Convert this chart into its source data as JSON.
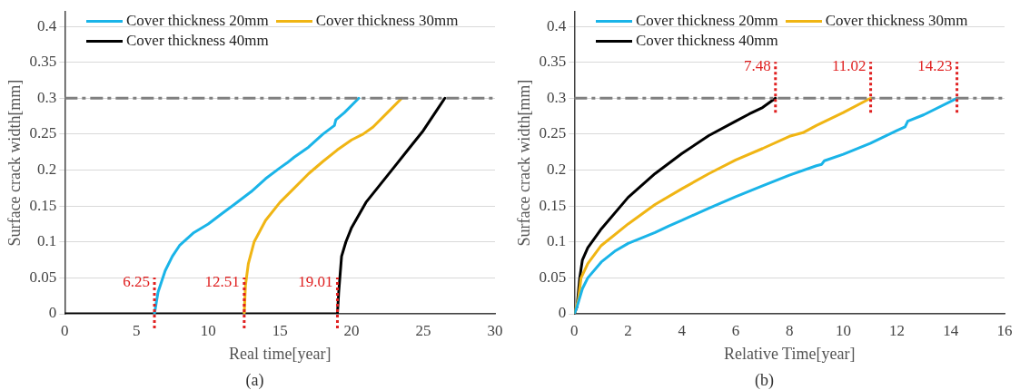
{
  "chart_data": [
    {
      "type": "line",
      "xlabel": "Real time[year]",
      "ylabel": "Surface crack width[mm]",
      "annotations": [
        "(a)"
      ],
      "xlim": [
        0,
        30
      ],
      "xticks": [
        0,
        5,
        10,
        15,
        20,
        25,
        30
      ],
      "ylim": [
        0,
        0.42
      ],
      "yticks": [
        0,
        0.05,
        0.1,
        0.15,
        0.2,
        0.25,
        0.3,
        0.35,
        0.4
      ],
      "grid": "y",
      "legend": "top",
      "line_style": "solid",
      "marker": "none",
      "series": [
        {
          "name": "Cover thickness 20mm",
          "color": "#1ab4e8",
          "x": [
            6.25,
            6.5,
            7,
            7.5,
            8,
            9,
            10,
            11,
            12,
            13,
            14,
            15,
            15.5,
            16,
            17,
            18,
            18.8,
            18.9,
            19.5,
            20.5
          ],
          "values": [
            0,
            0.03,
            0.06,
            0.08,
            0.095,
            0.113,
            0.125,
            0.14,
            0.155,
            0.17,
            0.188,
            0.203,
            0.21,
            0.218,
            0.232,
            0.25,
            0.262,
            0.27,
            0.28,
            0.3
          ]
        },
        {
          "name": "Cover thickness 30mm",
          "color": "#f0b514",
          "x": [
            12.51,
            12.6,
            12.8,
            13.2,
            14,
            15,
            16,
            17,
            18,
            19,
            20,
            20.8,
            21.5,
            22.5,
            23.5
          ],
          "values": [
            0,
            0.04,
            0.07,
            0.1,
            0.13,
            0.155,
            0.175,
            0.195,
            0.212,
            0.228,
            0.242,
            0.25,
            0.26,
            0.28,
            0.3
          ]
        },
        {
          "name": "Cover thickness 40mm",
          "color": "#000000",
          "x": [
            0,
            19.01,
            19.1,
            19.3,
            19.6,
            20,
            21,
            22,
            23,
            24,
            25,
            26,
            26.5
          ],
          "values": [
            0,
            0,
            0.03,
            0.08,
            0.1,
            0.12,
            0.155,
            0.18,
            0.205,
            0.23,
            0.255,
            0.285,
            0.3
          ]
        }
      ],
      "ref_lines": [
        {
          "axis": "y",
          "value": 0.3,
          "label": null,
          "color": "#808080",
          "line_style": "dashed"
        },
        {
          "axis": "x",
          "value": 6.25,
          "label": "6.25",
          "color": "#e02020",
          "line_style": "dotted"
        },
        {
          "axis": "x",
          "value": 12.51,
          "label": "12.51",
          "color": "#e02020",
          "line_style": "dotted"
        },
        {
          "axis": "x",
          "value": 19.01,
          "label": "19.01",
          "color": "#e02020",
          "line_style": "dotted"
        }
      ]
    },
    {
      "type": "line",
      "xlabel": "Relative Time[year]",
      "ylabel": "Surface crack width[mm]",
      "annotations": [
        "(b)"
      ],
      "xlim": [
        0,
        16
      ],
      "xticks": [
        0,
        2,
        4,
        6,
        8,
        10,
        12,
        14,
        16
      ],
      "ylim": [
        0,
        0.42
      ],
      "yticks": [
        0,
        0.05,
        0.1,
        0.15,
        0.2,
        0.25,
        0.3,
        0.35,
        0.4
      ],
      "grid": "y",
      "legend": "top",
      "line_style": "solid",
      "marker": "none",
      "series": [
        {
          "name": "Cover thickness 20mm",
          "color": "#1ab4e8",
          "x": [
            0,
            0.1,
            0.3,
            0.5,
            1,
            1.5,
            2,
            3,
            3.5,
            4,
            5,
            6,
            7,
            8,
            9,
            9.2,
            9.3,
            10,
            11,
            12,
            12.3,
            12.4,
            13,
            14.23
          ],
          "values": [
            0,
            0.01,
            0.035,
            0.05,
            0.072,
            0.087,
            0.098,
            0.113,
            0.122,
            0.13,
            0.147,
            0.163,
            0.178,
            0.193,
            0.206,
            0.208,
            0.213,
            0.222,
            0.237,
            0.255,
            0.26,
            0.268,
            0.277,
            0.3
          ]
        },
        {
          "name": "Cover thickness 30mm",
          "color": "#f0b514",
          "x": [
            0,
            0.15,
            0.25,
            0.5,
            1,
            2,
            3,
            4,
            5,
            6,
            7,
            8,
            8.5,
            9,
            10,
            11.02
          ],
          "values": [
            0,
            0.02,
            0.05,
            0.07,
            0.095,
            0.125,
            0.152,
            0.174,
            0.195,
            0.214,
            0.23,
            0.247,
            0.252,
            0.262,
            0.28,
            0.3
          ]
        },
        {
          "name": "Cover thickness 40mm",
          "color": "#000000",
          "x": [
            0,
            0.1,
            0.2,
            0.3,
            0.5,
            1,
            2,
            3,
            4,
            5,
            6,
            6.5,
            7,
            7.48
          ],
          "values": [
            0,
            0.01,
            0.05,
            0.075,
            0.092,
            0.118,
            0.162,
            0.195,
            0.223,
            0.248,
            0.268,
            0.278,
            0.287,
            0.3
          ]
        }
      ],
      "ref_lines": [
        {
          "axis": "y",
          "value": 0.3,
          "label": null,
          "color": "#808080",
          "line_style": "dashed"
        },
        {
          "axis": "x",
          "value": 7.48,
          "label": "7.48",
          "color": "#e02020",
          "line_style": "dotted"
        },
        {
          "axis": "x",
          "value": 11.02,
          "label": "11.02",
          "color": "#e02020",
          "line_style": "dotted"
        },
        {
          "axis": "x",
          "value": 14.23,
          "label": "14.23",
          "color": "#e02020",
          "line_style": "dotted"
        }
      ]
    }
  ]
}
